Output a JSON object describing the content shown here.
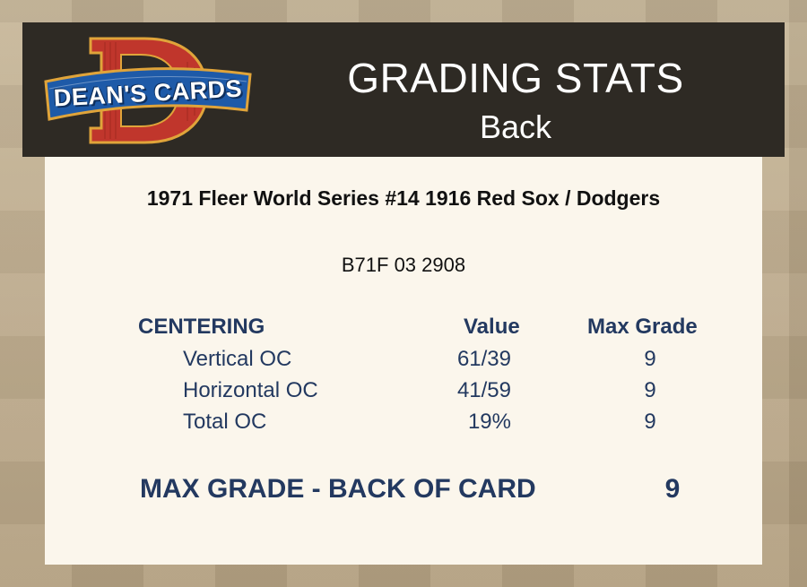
{
  "logo": {
    "letter": "D",
    "text": "DEAN'S CARDS",
    "colors": {
      "letter": "#c0362c",
      "banner": "#1e5aa8",
      "outline": "#e0a43a"
    }
  },
  "header": {
    "title": "GRADING STATS",
    "subtitle": "Back"
  },
  "card": {
    "title": "1971 Fleer World Series #14  1916 Red Sox / Dodgers",
    "cert": "B71F 03 2908"
  },
  "centering": {
    "heading": "CENTERING",
    "value_heading": "Value",
    "grade_heading": "Max Grade",
    "rows": [
      {
        "label": "Vertical OC",
        "value": "61/39",
        "grade": "9"
      },
      {
        "label": "Horizontal OC",
        "value": "41/59",
        "grade": "9"
      },
      {
        "label": "Total OC",
        "value": "19%",
        "grade": "9"
      }
    ]
  },
  "summary": {
    "label": "MAX GRADE - BACK OF CARD",
    "grade": "9"
  },
  "colors": {
    "header_bg": "#2e2a24",
    "panel_bg": "#fbf6ec",
    "navy_text": "#233960",
    "page_bg": "#b9a789"
  }
}
